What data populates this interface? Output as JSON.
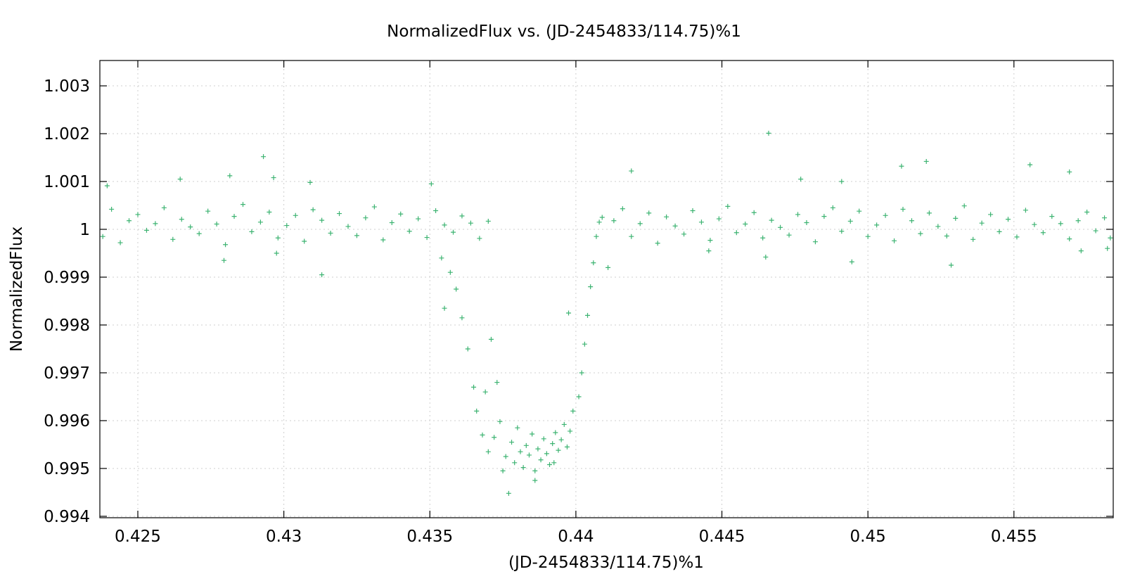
{
  "chart_data": {
    "type": "scatter",
    "title": "NormalizedFlux vs. (JD-2454833/114.75)%1",
    "xlabel": "(JD-2454833/114.75)%1",
    "ylabel": "NormalizedFlux",
    "xlim": [
      0.4237,
      0.4584
    ],
    "ylim": [
      0.99397,
      1.00353
    ],
    "xticks": [
      0.425,
      0.43,
      0.435,
      0.44,
      0.445,
      0.45,
      0.455
    ],
    "xtick_labels": [
      "0.425",
      "0.43",
      "0.435",
      "0.44",
      "0.445",
      "0.45",
      "0.455"
    ],
    "yticks": [
      0.994,
      0.995,
      0.996,
      0.997,
      0.998,
      0.999,
      1.0,
      1.001,
      1.002,
      1.003
    ],
    "ytick_labels": [
      "0.994",
      "0.995",
      "0.996",
      "0.997",
      "0.998",
      "0.999",
      "1",
      "1.001",
      "1.002",
      "1.003"
    ],
    "grid": true,
    "marker": "+",
    "color": "#3cb371",
    "series": [
      {
        "points": [
          [
            0.4238,
            0.99985
          ],
          [
            0.4241,
            1.00042
          ],
          [
            0.4244,
            0.99972
          ],
          [
            0.4247,
            1.00018
          ],
          [
            0.425,
            1.00031
          ],
          [
            0.4253,
            0.99998
          ],
          [
            0.4256,
            1.00012
          ],
          [
            0.4259,
            1.00045
          ],
          [
            0.4262,
            0.99979
          ],
          [
            0.4265,
            1.00021
          ],
          [
            0.4268,
            1.00005
          ],
          [
            0.4271,
            0.99991
          ],
          [
            0.4274,
            1.00038
          ],
          [
            0.4277,
            1.00011
          ],
          [
            0.428,
            0.99968
          ],
          [
            0.4283,
            1.00027
          ],
          [
            0.4286,
            1.00052
          ],
          [
            0.4289,
            0.99995
          ],
          [
            0.4292,
            1.00015
          ],
          [
            0.4295,
            1.00036
          ],
          [
            0.4298,
            0.99982
          ],
          [
            0.4301,
            1.00008
          ],
          [
            0.4304,
            1.00029
          ],
          [
            0.4307,
            0.99975
          ],
          [
            0.431,
            1.00041
          ],
          [
            0.4313,
            1.00019
          ],
          [
            0.4316,
            0.99992
          ],
          [
            0.4319,
            1.00033
          ],
          [
            0.4322,
            1.00006
          ],
          [
            0.4325,
            0.99987
          ],
          [
            0.4328,
            1.00024
          ],
          [
            0.4331,
            1.00047
          ],
          [
            0.4334,
            0.99978
          ],
          [
            0.4337,
            1.00014
          ],
          [
            0.434,
            1.00032
          ],
          [
            0.4343,
            0.99996
          ],
          [
            0.4346,
            1.00022
          ],
          [
            0.4349,
            0.99983
          ],
          [
            0.4352,
            1.00039
          ],
          [
            0.4355,
            1.00009
          ],
          [
            0.4358,
            0.99994
          ],
          [
            0.4361,
            1.00028
          ],
          [
            0.4364,
            1.00013
          ],
          [
            0.4367,
            0.99981
          ],
          [
            0.437,
            1.00017
          ],
          [
            0.42395,
            1.00091
          ],
          [
            0.42645,
            1.00105
          ],
          [
            0.42795,
            0.99935
          ],
          [
            0.42815,
            1.00112
          ],
          [
            0.4293,
            1.00152
          ],
          [
            0.42965,
            1.00108
          ],
          [
            0.42975,
            0.9995
          ],
          [
            0.4309,
            1.00098
          ],
          [
            0.4313,
            0.99905
          ],
          [
            0.43505,
            1.00095
          ],
          [
            0.4354,
            0.9994
          ],
          [
            0.4355,
            0.99835
          ],
          [
            0.4357,
            0.9991
          ],
          [
            0.4359,
            0.99875
          ],
          [
            0.4361,
            0.99815
          ],
          [
            0.4363,
            0.9975
          ],
          [
            0.4365,
            0.9967
          ],
          [
            0.4366,
            0.9962
          ],
          [
            0.4368,
            0.9957
          ],
          [
            0.437,
            0.99535
          ],
          [
            0.4372,
            0.99565
          ],
          [
            0.4374,
            0.99598
          ],
          [
            0.4375,
            0.99495
          ],
          [
            0.4376,
            0.99525
          ],
          [
            0.4377,
            0.99448
          ],
          [
            0.4378,
            0.99555
          ],
          [
            0.4379,
            0.99512
          ],
          [
            0.438,
            0.99585
          ],
          [
            0.4381,
            0.99535
          ],
          [
            0.4382,
            0.99502
          ],
          [
            0.4383,
            0.99548
          ],
          [
            0.4384,
            0.99528
          ],
          [
            0.4385,
            0.99572
          ],
          [
            0.4386,
            0.99495
          ],
          [
            0.4387,
            0.99541
          ],
          [
            0.4388,
            0.99518
          ],
          [
            0.4389,
            0.99562
          ],
          [
            0.439,
            0.99531
          ],
          [
            0.4391,
            0.99508
          ],
          [
            0.4392,
            0.99552
          ],
          [
            0.4393,
            0.99575
          ],
          [
            0.4394,
            0.99538
          ],
          [
            0.4395,
            0.9956
          ],
          [
            0.4396,
            0.99592
          ],
          [
            0.4397,
            0.99545
          ],
          [
            0.4398,
            0.99578
          ],
          [
            0.4399,
            0.9962
          ],
          [
            0.4386,
            0.99475
          ],
          [
            0.43925,
            0.99512
          ],
          [
            0.43975,
            0.99825
          ],
          [
            0.4371,
            0.9977
          ],
          [
            0.4369,
            0.9966
          ],
          [
            0.4373,
            0.9968
          ],
          [
            0.4401,
            0.9965
          ],
          [
            0.4402,
            0.997
          ],
          [
            0.4403,
            0.9976
          ],
          [
            0.4404,
            0.9982
          ],
          [
            0.4405,
            0.9988
          ],
          [
            0.4406,
            0.9993
          ],
          [
            0.4407,
            0.99985
          ],
          [
            0.4408,
            1.00015
          ],
          [
            0.4409,
            1.00025
          ],
          [
            0.4411,
            0.9992
          ],
          [
            0.4419,
            1.00122
          ],
          [
            0.4413,
            1.00018
          ],
          [
            0.4416,
            1.00043
          ],
          [
            0.4419,
            0.99985
          ],
          [
            0.4422,
            1.00012
          ],
          [
            0.4425,
            1.00034
          ],
          [
            0.4428,
            0.99971
          ],
          [
            0.4431,
            1.00026
          ],
          [
            0.4434,
            1.00007
          ],
          [
            0.4437,
            0.9999
          ],
          [
            0.444,
            1.00039
          ],
          [
            0.4443,
            1.00015
          ],
          [
            0.4446,
            0.99977
          ],
          [
            0.4449,
            1.00022
          ],
          [
            0.4452,
            1.00048
          ],
          [
            0.4455,
            0.99993
          ],
          [
            0.4458,
            1.00011
          ],
          [
            0.4461,
            1.00035
          ],
          [
            0.4464,
            0.99982
          ],
          [
            0.4467,
            1.00019
          ],
          [
            0.447,
            1.00004
          ],
          [
            0.4473,
            0.99988
          ],
          [
            0.4476,
            1.00031
          ],
          [
            0.4479,
            1.00014
          ],
          [
            0.4482,
            0.99974
          ],
          [
            0.4485,
            1.00027
          ],
          [
            0.4488,
            1.00045
          ],
          [
            0.4491,
            0.99996
          ],
          [
            0.4494,
            1.00017
          ],
          [
            0.4497,
            1.00038
          ],
          [
            0.45,
            0.99985
          ],
          [
            0.4503,
            1.00009
          ],
          [
            0.4506,
            1.00029
          ],
          [
            0.4509,
            0.99976
          ],
          [
            0.4512,
            1.00042
          ],
          [
            0.4515,
            1.00018
          ],
          [
            0.4518,
            0.99991
          ],
          [
            0.4521,
            1.00034
          ],
          [
            0.4524,
            1.00006
          ],
          [
            0.4527,
            0.99986
          ],
          [
            0.453,
            1.00023
          ],
          [
            0.4533,
            1.00049
          ],
          [
            0.4536,
            0.99979
          ],
          [
            0.4539,
            1.00013
          ],
          [
            0.4542,
            1.00031
          ],
          [
            0.4545,
            0.99995
          ],
          [
            0.4548,
            1.00021
          ],
          [
            0.4551,
            0.99984
          ],
          [
            0.4554,
            1.0004
          ],
          [
            0.4557,
            1.0001
          ],
          [
            0.456,
            0.99993
          ],
          [
            0.4563,
            1.00027
          ],
          [
            0.4566,
            1.00012
          ],
          [
            0.4569,
            0.9998
          ],
          [
            0.4572,
            1.00018
          ],
          [
            0.4575,
            1.00036
          ],
          [
            0.4578,
            0.99997
          ],
          [
            0.4581,
            1.00024
          ],
          [
            0.4583,
            0.99982
          ],
          [
            0.44455,
            0.99955
          ],
          [
            0.4466,
            1.00201
          ],
          [
            0.4477,
            1.00105
          ],
          [
            0.4465,
            0.99942
          ],
          [
            0.4491,
            1.001
          ],
          [
            0.44945,
            0.99932
          ],
          [
            0.45115,
            1.00132
          ],
          [
            0.452,
            1.00142
          ],
          [
            0.45285,
            0.99925
          ],
          [
            0.45555,
            1.00135
          ],
          [
            0.4569,
            1.0012
          ],
          [
            0.4573,
            0.99955
          ],
          [
            0.4582,
            0.9996
          ]
        ]
      }
    ]
  }
}
